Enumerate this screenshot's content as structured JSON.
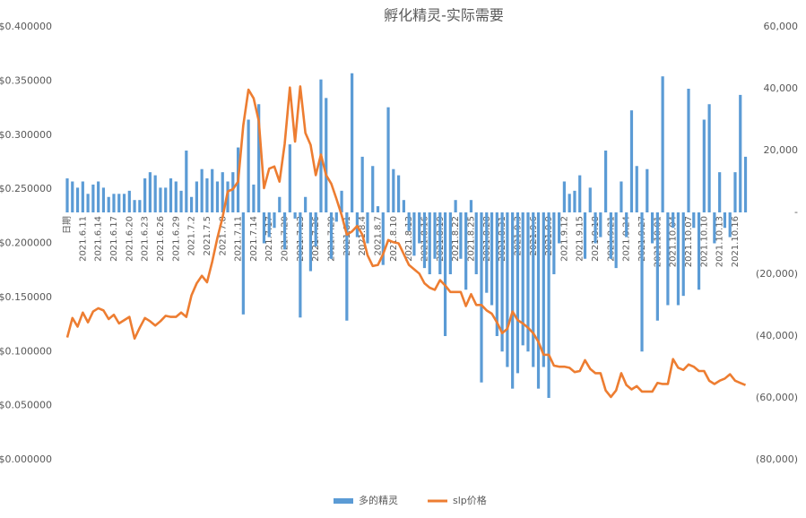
{
  "chart_data": {
    "type": "bar",
    "title": "孵化精灵-实际需要",
    "categories": [
      "日期",
      null,
      null,
      "2021.6.11",
      null,
      null,
      "2021.6.14",
      null,
      null,
      "2021.6.17",
      null,
      null,
      "2021.6.20",
      null,
      null,
      "2021.6.23",
      null,
      null,
      "2021.6.26",
      null,
      null,
      "2021.6.29",
      null,
      null,
      "2021.7.2",
      null,
      null,
      "2021.7.5",
      null,
      null,
      "2021.7.8",
      null,
      null,
      "2021.7.11",
      null,
      null,
      "2021.7.14",
      null,
      null,
      "2021.7.17",
      null,
      null,
      "2021.7.20",
      null,
      null,
      "2021.7.23",
      null,
      null,
      "2021.7.26",
      null,
      null,
      "2021.7.29",
      null,
      null,
      "2021.8.1",
      null,
      null,
      "2021.8.4",
      null,
      null,
      "2021.8.7",
      null,
      null,
      "2021.8.10",
      null,
      null,
      "2021.8.13",
      null,
      null,
      "2021.8.16",
      null,
      null,
      "2021.8.19",
      null,
      null,
      "2021.8.22",
      null,
      null,
      "2021.8.25",
      null,
      null,
      "2021.8.28",
      null,
      null,
      "2021.8.31",
      null,
      null,
      "2021.9.3",
      null,
      null,
      "2021.9.6",
      null,
      null,
      "2021.9.9",
      null,
      null,
      "2021.9.12",
      null,
      null,
      "2021.9.15",
      null,
      null,
      "2021.9.18",
      null,
      null,
      "2021.9.21",
      null,
      null,
      "2021.9.24",
      null,
      null,
      "2021.9.27",
      null,
      null,
      "2021.10.01",
      null,
      null,
      "2021.10.04",
      null,
      null,
      "2021.10.07",
      null,
      null,
      "2021.10.10",
      null,
      null,
      "2021.10.13",
      null,
      null,
      "2021.10.16",
      null,
      null
    ],
    "series": [
      {
        "name": "多的精灵",
        "color": "#5b9bd5",
        "axis": "y2",
        "values": [
          11000,
          10000,
          8000,
          10000,
          6000,
          9000,
          10000,
          8000,
          5000,
          6000,
          6000,
          6000,
          7000,
          4000,
          4000,
          11000,
          13000,
          12000,
          8000,
          8000,
          11000,
          10000,
          7000,
          20000,
          5000,
          10000,
          14000,
          11000,
          14000,
          10000,
          13000,
          10000,
          13000,
          21000,
          -33000,
          30000,
          9000,
          35000,
          -10000,
          -8000,
          -5000,
          5000,
          -12000,
          22000,
          -2000,
          -34000,
          5000,
          -19000,
          -11000,
          43000,
          37000,
          -15000,
          -3000,
          7000,
          -35000,
          45000,
          -8000,
          18000,
          -10000,
          15000,
          2000,
          -17000,
          34000,
          14000,
          12000,
          4000,
          -6000,
          -14000,
          -10000,
          -18000,
          -20000,
          -15000,
          -20000,
          -40000,
          -20000,
          4000,
          -15000,
          -25000,
          4000,
          -20000,
          -55000,
          -26000,
          -30000,
          -40000,
          -45000,
          -50000,
          -57000,
          -52000,
          -43000,
          -45000,
          -50000,
          -57000,
          -50000,
          -60000,
          -20000,
          -10000,
          10000,
          6000,
          7000,
          12000,
          -15000,
          8000,
          -10000,
          -8000,
          20000,
          -15000,
          -18000,
          10000,
          -8000,
          33000,
          15000,
          -45000,
          14000,
          -10000,
          -35000,
          44000,
          -30000,
          -5000,
          -30000,
          -27000,
          40000,
          -5000,
          -25000,
          30000,
          35000,
          -10000,
          13000,
          -5000,
          -8000,
          13000,
          38000,
          18000
        ]
      },
      {
        "name": "slp价格",
        "color": "#ed7d31",
        "type": "line",
        "values": [
          0.113,
          0.131,
          0.123,
          0.136,
          0.127,
          0.137,
          0.14,
          0.138,
          0.13,
          0.134,
          0.126,
          0.129,
          0.132,
          0.112,
          0.122,
          0.131,
          0.128,
          0.124,
          0.128,
          0.133,
          0.132,
          0.132,
          0.136,
          0.132,
          0.152,
          0.163,
          0.17,
          0.164,
          0.183,
          0.205,
          0.224,
          0.248,
          0.25,
          0.257,
          0.309,
          0.342,
          0.334,
          0.313,
          0.251,
          0.269,
          0.271,
          0.257,
          0.292,
          0.344,
          0.294,
          0.345,
          0.302,
          0.291,
          0.263,
          0.282,
          0.263,
          0.255,
          0.241,
          0.226,
          0.208,
          0.211,
          0.216,
          0.208,
          0.189,
          0.179,
          0.18,
          0.19,
          0.203,
          0.201,
          0.2,
          0.19,
          0.18,
          0.176,
          0.172,
          0.163,
          0.159,
          0.157,
          0.166,
          0.161,
          0.155,
          0.155,
          0.155,
          0.142,
          0.153,
          0.143,
          0.143,
          0.138,
          0.135,
          0.127,
          0.117,
          0.121,
          0.137,
          0.129,
          0.126,
          0.122,
          0.117,
          0.109,
          0.097,
          0.097,
          0.087,
          0.086,
          0.086,
          0.085,
          0.081,
          0.082,
          0.092,
          0.084,
          0.08,
          0.08,
          0.064,
          0.058,
          0.064,
          0.08,
          0.069,
          0.065,
          0.068,
          0.063,
          0.063,
          0.063,
          0.071,
          0.07,
          0.07,
          0.093,
          0.085,
          0.083,
          0.088,
          0.086,
          0.082,
          0.082,
          0.073,
          0.07,
          0.073,
          0.075,
          0.079,
          0.073,
          0.071,
          0.069
        ]
      }
    ],
    "ylim": [
      0,
      0.4
    ],
    "yticks": [
      {
        "value": 0,
        "label": "$0.000000"
      },
      {
        "value": 0.05,
        "label": "$0.050000"
      },
      {
        "value": 0.1,
        "label": "$0.100000"
      },
      {
        "value": 0.15,
        "label": "$0.150000"
      },
      {
        "value": 0.2,
        "label": "$0.200000"
      },
      {
        "value": 0.25,
        "label": "$0.250000"
      },
      {
        "value": 0.3,
        "label": "$0.300000"
      },
      {
        "value": 0.35,
        "label": "$0.350000"
      },
      {
        "value": 0.4,
        "label": "$0.400000"
      }
    ],
    "y2lim": [
      -80000,
      60000
    ],
    "y2ticks": [
      {
        "value": -80000,
        "label": "(80,000)"
      },
      {
        "value": -60000,
        "label": "(60,000)"
      },
      {
        "value": -40000,
        "label": "(40,000)"
      },
      {
        "value": -20000,
        "label": "(20,000)"
      },
      {
        "value": 0,
        "label": "-"
      },
      {
        "value": 20000,
        "label": "20,000"
      },
      {
        "value": 40000,
        "label": "40,000"
      },
      {
        "value": 60000,
        "label": "60,000"
      }
    ],
    "grid": false,
    "legend": "bottom"
  }
}
